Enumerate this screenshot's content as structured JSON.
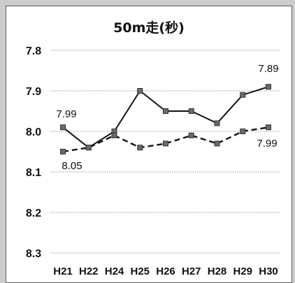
{
  "chart_data": {
    "type": "line",
    "title": "50m走(秒)",
    "xlabel": "",
    "ylabel": "",
    "y_inverted": true,
    "ylim": [
      7.8,
      8.3
    ],
    "yticks": [
      "7.8",
      "7.9",
      "8.0",
      "8.1",
      "8.2",
      "8.3"
    ],
    "grid": true,
    "categories": [
      "H21",
      "H22",
      "H24",
      "H25",
      "H26",
      "H27",
      "H28",
      "H29",
      "H30"
    ],
    "series": [
      {
        "style": "solid",
        "color": "#111111",
        "values": [
          7.99,
          8.04,
          8.0,
          7.9,
          7.95,
          7.95,
          7.98,
          7.91,
          7.89
        ]
      },
      {
        "style": "dashed",
        "color": "#111111",
        "values": [
          8.05,
          8.04,
          8.01,
          8.04,
          8.03,
          8.01,
          8.03,
          8.0,
          7.99
        ]
      }
    ],
    "annotations": [
      {
        "text": "7.99"
      },
      {
        "text": "7.89"
      },
      {
        "text": "8.05"
      },
      {
        "text": "7.99"
      }
    ]
  }
}
